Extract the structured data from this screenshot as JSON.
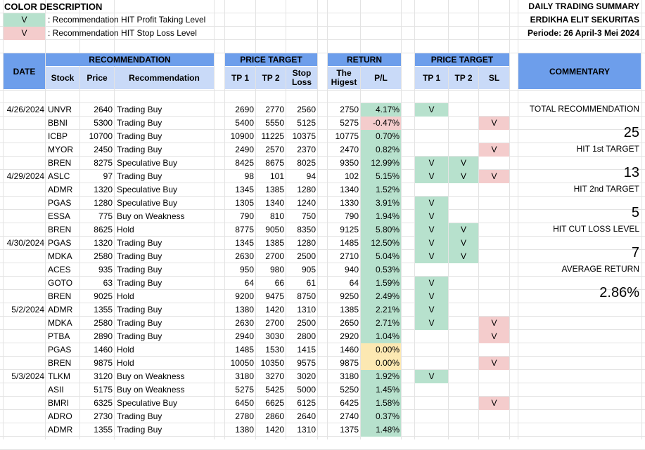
{
  "legend": {
    "title": "COLOR DESCRIPTION",
    "items": [
      {
        "mark": "V",
        "text": ": Recommendation HIT Profit Taking Level",
        "color": "#b7e1cd"
      },
      {
        "mark": "V",
        "text": ": Recommendation HIT Stop Loss Level",
        "color": "#f4cccc"
      }
    ]
  },
  "report": {
    "title": "DAILY TRADING SUMMARY",
    "company": "ERDIKHA ELIT SEKURITAS",
    "period": "Periode:  26 April-3 Mei 2024"
  },
  "headers": {
    "date": "DATE",
    "recommendation": "RECOMMENDATION",
    "stock": "Stock",
    "price": "Price",
    "recommendation_col": "Recommendation",
    "price_target": "PRICE TARGET",
    "tp1": "TP 1",
    "tp2": "TP 2",
    "stop_loss": "Stop Loss",
    "return": "RETURN",
    "highest": "The Higest",
    "pl": "P/L",
    "price_target2": "PRICE TARGET",
    "hit_tp1": "TP 1",
    "hit_tp2": "TP 2",
    "hit_sl": "SL",
    "commentary": "COMMENTARY"
  },
  "rows": [
    {
      "date": "4/26/2024",
      "stock": "UNVR",
      "price": "2640",
      "rec": "Trading Buy",
      "tp1": "2690",
      "tp2": "2770",
      "sl": "2560",
      "high": "2750",
      "pl": "4.17%",
      "pl_color": "green",
      "h1": "V",
      "h2": "",
      "hs": ""
    },
    {
      "date": "",
      "stock": "BBNI",
      "price": "5300",
      "rec": "Trading Buy",
      "tp1": "5400",
      "tp2": "5550",
      "sl": "5125",
      "high": "5275",
      "pl": "-0.47%",
      "pl_color": "red",
      "h1": "",
      "h2": "",
      "hs": "V"
    },
    {
      "date": "",
      "stock": "ICBP",
      "price": "10700",
      "rec": "Trading Buy",
      "tp1": "10900",
      "tp2": "11225",
      "sl": "10375",
      "high": "10775",
      "pl": "0.70%",
      "pl_color": "green",
      "h1": "",
      "h2": "",
      "hs": ""
    },
    {
      "date": "",
      "stock": "MYOR",
      "price": "2450",
      "rec": "Trading Buy",
      "tp1": "2490",
      "tp2": "2570",
      "sl": "2370",
      "high": "2470",
      "pl": "0.82%",
      "pl_color": "green",
      "h1": "",
      "h2": "",
      "hs": "V"
    },
    {
      "date": "",
      "stock": "BREN",
      "price": "8275",
      "rec": "Speculative Buy",
      "tp1": "8425",
      "tp2": "8675",
      "sl": "8025",
      "high": "9350",
      "pl": "12.99%",
      "pl_color": "green",
      "h1": "V",
      "h2": "V",
      "hs": ""
    },
    {
      "date": "4/29/2024",
      "stock": "ASLC",
      "price": "97",
      "rec": "Trading Buy",
      "tp1": "98",
      "tp2": "101",
      "sl": "94",
      "high": "102",
      "pl": "5.15%",
      "pl_color": "green",
      "h1": "V",
      "h2": "V",
      "hs": "V"
    },
    {
      "date": "",
      "stock": "ADMR",
      "price": "1320",
      "rec": "Speculative Buy",
      "tp1": "1345",
      "tp2": "1385",
      "sl": "1280",
      "high": "1340",
      "pl": "1.52%",
      "pl_color": "green",
      "h1": "",
      "h2": "",
      "hs": ""
    },
    {
      "date": "",
      "stock": "PGAS",
      "price": "1280",
      "rec": "Speculative Buy",
      "tp1": "1305",
      "tp2": "1340",
      "sl": "1240",
      "high": "1330",
      "pl": "3.91%",
      "pl_color": "green",
      "h1": "V",
      "h2": "",
      "hs": ""
    },
    {
      "date": "",
      "stock": "ESSA",
      "price": "775",
      "rec": "Buy on Weakness",
      "tp1": "790",
      "tp2": "810",
      "sl": "750",
      "high": "790",
      "pl": "1.94%",
      "pl_color": "green",
      "h1": "V",
      "h2": "",
      "hs": ""
    },
    {
      "date": "",
      "stock": "BREN",
      "price": "8625",
      "rec": "Hold",
      "tp1": "8775",
      "tp2": "9050",
      "sl": "8350",
      "high": "9125",
      "pl": "5.80%",
      "pl_color": "green",
      "h1": "V",
      "h2": "V",
      "hs": ""
    },
    {
      "date": "4/30/2024",
      "stock": "PGAS",
      "price": "1320",
      "rec": "Trading Buy",
      "tp1": "1345",
      "tp2": "1385",
      "sl": "1280",
      "high": "1485",
      "pl": "12.50%",
      "pl_color": "green",
      "h1": "V",
      "h2": "V",
      "hs": ""
    },
    {
      "date": "",
      "stock": "MDKA",
      "price": "2580",
      "rec": "Trading Buy",
      "tp1": "2630",
      "tp2": "2700",
      "sl": "2500",
      "high": "2710",
      "pl": "5.04%",
      "pl_color": "green",
      "h1": "V",
      "h2": "V",
      "hs": ""
    },
    {
      "date": "",
      "stock": "ACES",
      "price": "935",
      "rec": "Trading Buy",
      "tp1": "950",
      "tp2": "980",
      "sl": "905",
      "high": "940",
      "pl": "0.53%",
      "pl_color": "green",
      "h1": "",
      "h2": "",
      "hs": ""
    },
    {
      "date": "",
      "stock": "GOTO",
      "price": "63",
      "rec": "Trading Buy",
      "tp1": "64",
      "tp2": "66",
      "sl": "61",
      "high": "64",
      "pl": "1.59%",
      "pl_color": "green",
      "h1": "V",
      "h2": "",
      "hs": ""
    },
    {
      "date": "",
      "stock": "BREN",
      "price": "9025",
      "rec": "Hold",
      "tp1": "9200",
      "tp2": "9475",
      "sl": "8750",
      "high": "9250",
      "pl": "2.49%",
      "pl_color": "green",
      "h1": "V",
      "h2": "",
      "hs": ""
    },
    {
      "date": "5/2/2024",
      "stock": "ADMR",
      "price": "1355",
      "rec": "Trading Buy",
      "tp1": "1380",
      "tp2": "1420",
      "sl": "1310",
      "high": "1385",
      "pl": "2.21%",
      "pl_color": "green",
      "h1": "V",
      "h2": "",
      "hs": ""
    },
    {
      "date": "",
      "stock": "MDKA",
      "price": "2580",
      "rec": "Trading Buy",
      "tp1": "2630",
      "tp2": "2700",
      "sl": "2500",
      "high": "2650",
      "pl": "2.71%",
      "pl_color": "green",
      "h1": "V",
      "h2": "",
      "hs": "V"
    },
    {
      "date": "",
      "stock": "PTBA",
      "price": "2890",
      "rec": "Trading Buy",
      "tp1": "2940",
      "tp2": "3030",
      "sl": "2800",
      "high": "2920",
      "pl": "1.04%",
      "pl_color": "green",
      "h1": "",
      "h2": "",
      "hs": "V"
    },
    {
      "date": "",
      "stock": "PGAS",
      "price": "1460",
      "rec": "Hold",
      "tp1": "1485",
      "tp2": "1530",
      "sl": "1415",
      "high": "1460",
      "pl": "0.00%",
      "pl_color": "yellow",
      "h1": "",
      "h2": "",
      "hs": ""
    },
    {
      "date": "",
      "stock": "BREN",
      "price": "9875",
      "rec": "Hold",
      "tp1": "10050",
      "tp2": "10350",
      "sl": "9575",
      "high": "9875",
      "pl": "0.00%",
      "pl_color": "yellow",
      "h1": "",
      "h2": "",
      "hs": "V"
    },
    {
      "date": "5/3/2024",
      "stock": "TLKM",
      "price": "3120",
      "rec": "Buy on Weakness",
      "tp1": "3180",
      "tp2": "3270",
      "sl": "3020",
      "high": "3180",
      "pl": "1.92%",
      "pl_color": "green",
      "h1": "V",
      "h2": "",
      "hs": ""
    },
    {
      "date": "",
      "stock": "ASII",
      "price": "5175",
      "rec": "Buy on Weakness",
      "tp1": "5275",
      "tp2": "5425",
      "sl": "5000",
      "high": "5250",
      "pl": "1.45%",
      "pl_color": "green",
      "h1": "",
      "h2": "",
      "hs": ""
    },
    {
      "date": "",
      "stock": "BMRI",
      "price": "6325",
      "rec": "Speculative Buy",
      "tp1": "6450",
      "tp2": "6625",
      "sl": "6125",
      "high": "6425",
      "pl": "1.58%",
      "pl_color": "green",
      "h1": "",
      "h2": "",
      "hs": "V"
    },
    {
      "date": "",
      "stock": "ADRO",
      "price": "2730",
      "rec": "Trading Buy",
      "tp1": "2780",
      "tp2": "2860",
      "sl": "2640",
      "high": "2740",
      "pl": "0.37%",
      "pl_color": "green",
      "h1": "",
      "h2": "",
      "hs": ""
    },
    {
      "date": "",
      "stock": "ADMR",
      "price": "1355",
      "rec": "Trading Buy",
      "tp1": "1380",
      "tp2": "1420",
      "sl": "1310",
      "high": "1375",
      "pl": "1.48%",
      "pl_color": "green",
      "h1": "",
      "h2": "",
      "hs": ""
    }
  ],
  "commentary": {
    "total_label": "TOTAL RECOMMENDATION",
    "total_value": "25",
    "hit1_label": "HIT 1st TARGET",
    "hit1_value": "13",
    "hit2_label": "HIT 2nd TARGET",
    "hit2_value": "5",
    "cut_label": "HIT CUT LOSS LEVEL",
    "cut_value": "7",
    "avg_label": "AVERAGE RETURN",
    "avg_value": "2.86%"
  },
  "colors": {
    "header_dark": "#6d9eeb",
    "header_light": "#c9daf8",
    "profit": "#b7e1cd",
    "loss": "#f4cccc",
    "neutral": "#fce8b2"
  }
}
